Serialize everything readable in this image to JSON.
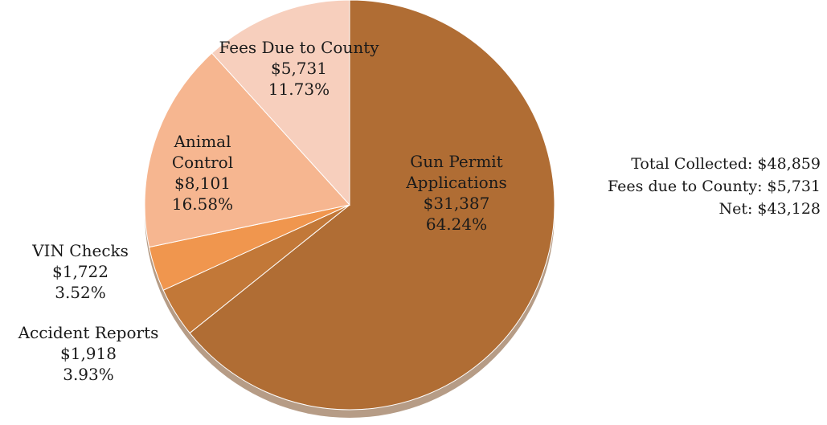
{
  "chart_data": {
    "type": "pie",
    "categories": [
      "Gun Permit Applications",
      "Accident Reports",
      "VIN Checks",
      "Animal Control",
      "Fees Due to County"
    ],
    "values": [
      31387,
      1918,
      1722,
      8101,
      5731
    ],
    "value_labels": [
      "$31,387",
      "$1,918",
      "$1,722",
      "$8,101",
      "$5,731"
    ],
    "percent_labels": [
      "64.24%",
      "3.93%",
      "3.52%",
      "16.58%",
      "11.73%"
    ],
    "colors": [
      "#b06d34",
      "#c27838",
      "#f0964e",
      "#f6b690",
      "#f7cfbd"
    ],
    "annotations": [
      "Total Collected: $48,859",
      "Fees due to County: $5,731",
      "Net: $43,128"
    ]
  }
}
